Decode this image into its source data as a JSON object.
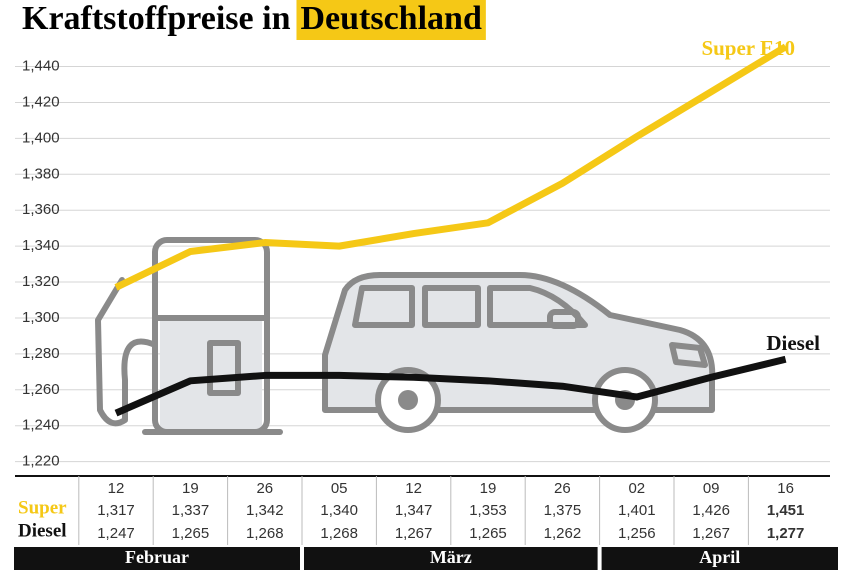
{
  "title": "Kraftstoffpreise in",
  "title_highlight": "Deutschland",
  "chart_data": {
    "type": "line",
    "categories": [
      "12",
      "19",
      "26",
      "05",
      "12",
      "19",
      "26",
      "02",
      "09",
      "16"
    ],
    "months": [
      "Februar",
      "März",
      "April"
    ],
    "series": [
      {
        "name": "Super E10",
        "row_label": "Super",
        "color": "#f5c816",
        "values": [
          1.317,
          1.337,
          1.342,
          1.34,
          1.347,
          1.353,
          1.375,
          1.401,
          1.426,
          1.451
        ],
        "value_labels": [
          "1,317",
          "1,337",
          "1,342",
          "1,340",
          "1,347",
          "1,353",
          "1,375",
          "1,401",
          "1,426",
          "1,451"
        ]
      },
      {
        "name": "Diesel",
        "row_label": "Diesel",
        "color": "#111111",
        "values": [
          1.247,
          1.265,
          1.268,
          1.268,
          1.267,
          1.265,
          1.262,
          1.256,
          1.267,
          1.277
        ],
        "value_labels": [
          "1,247",
          "1,265",
          "1,268",
          "1,268",
          "1,267",
          "1,265",
          "1,262",
          "1,256",
          "1,267",
          "1,277"
        ]
      }
    ],
    "ylim": [
      1.212,
      1.452
    ],
    "yticks": [
      {
        "value": 1.22,
        "label": "1,220"
      },
      {
        "value": 1.24,
        "label": "1,240"
      },
      {
        "value": 1.26,
        "label": "1,260"
      },
      {
        "value": 1.28,
        "label": "1,280"
      },
      {
        "value": 1.3,
        "label": "1,300"
      },
      {
        "value": 1.32,
        "label": "1,320"
      },
      {
        "value": 1.34,
        "label": "1,340"
      },
      {
        "value": 1.36,
        "label": "1,360"
      },
      {
        "value": 1.38,
        "label": "1,380"
      },
      {
        "value": 1.4,
        "label": "1,400"
      },
      {
        "value": 1.42,
        "label": "1,420"
      },
      {
        "value": 1.44,
        "label": "1,440"
      }
    ],
    "grid": true
  }
}
